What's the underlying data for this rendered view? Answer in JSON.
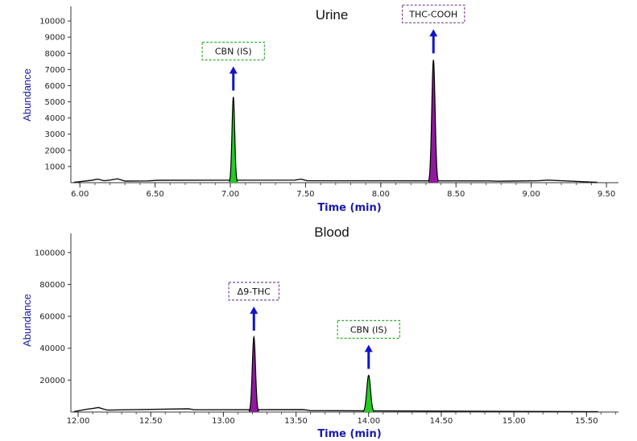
{
  "chart_data": [
    {
      "type": "line",
      "title": "Urine",
      "xlabel": "Time (min)",
      "ylabel": "Abundance",
      "xlim": [
        5.94,
        9.58
      ],
      "ylim": [
        0,
        10900
      ],
      "x_ticks": [
        "6.00",
        "6.50",
        "7.00",
        "7.50",
        "8.00",
        "8.50",
        "9.00",
        "9.50"
      ],
      "x_tick_values": [
        6.0,
        6.5,
        7.0,
        7.5,
        8.0,
        8.5,
        9.0,
        9.5
      ],
      "y_ticks": [
        "1000",
        "2000",
        "3000",
        "4000",
        "5000",
        "6000",
        "7000",
        "8000",
        "9000",
        "10000"
      ],
      "y_tick_values": [
        1000,
        2000,
        3000,
        4000,
        5000,
        6000,
        7000,
        8000,
        9000,
        10000
      ],
      "grid": false,
      "peaks": [
        {
          "label": "CBN (IS)",
          "rt": 7.02,
          "height": 5300,
          "width": 0.018,
          "fill": "#22cc22",
          "box_color": "#33aa33"
        },
        {
          "label": "THC-COOH",
          "rt": 8.35,
          "height": 7600,
          "width": 0.022,
          "fill": "#8e1a9e",
          "box_color": "#7a4a8a"
        }
      ],
      "baseline_noise": [
        [
          6.08,
          150
        ],
        [
          6.12,
          220
        ],
        [
          6.16,
          120
        ],
        [
          6.2,
          160
        ],
        [
          6.25,
          240
        ],
        [
          6.3,
          100
        ],
        [
          6.45,
          110
        ],
        [
          6.52,
          150
        ],
        [
          7.43,
          160
        ],
        [
          7.47,
          220
        ],
        [
          7.51,
          120
        ],
        [
          8.72,
          110
        ],
        [
          8.78,
          90
        ],
        [
          9.05,
          120
        ],
        [
          9.11,
          160
        ]
      ]
    },
    {
      "type": "line",
      "title": "Blood",
      "xlabel": "Time (min)",
      "ylabel": "Abundance",
      "xlim": [
        11.95,
        15.72
      ],
      "ylim": [
        0,
        112000
      ],
      "x_ticks": [
        "12.00",
        "12.50",
        "13.00",
        "13.50",
        "14.00",
        "14.50",
        "15.00",
        "15.50"
      ],
      "x_tick_values": [
        12.0,
        12.5,
        13.0,
        13.5,
        14.0,
        14.5,
        15.0,
        15.5
      ],
      "y_ticks": [
        "20000",
        "40000",
        "60000",
        "80000",
        "100000"
      ],
      "y_tick_values": [
        20000,
        40000,
        60000,
        80000,
        100000
      ],
      "grid": false,
      "peaks": [
        {
          "label": "Δ9-THC",
          "rt": 13.21,
          "height": 47000,
          "width": 0.022,
          "fill": "#8e1a9e",
          "box_color": "#7a4a8a"
        },
        {
          "label": "CBN (IS)",
          "rt": 14.0,
          "height": 23000,
          "width": 0.026,
          "fill": "#22cc22",
          "box_color": "#33aa33"
        }
      ],
      "baseline_noise": [
        [
          12.05,
          1600
        ],
        [
          12.1,
          2200
        ],
        [
          12.14,
          2800
        ],
        [
          12.2,
          1200
        ],
        [
          12.76,
          2000
        ],
        [
          12.8,
          1400
        ],
        [
          13.55,
          1500
        ],
        [
          13.6,
          900
        ]
      ]
    }
  ]
}
